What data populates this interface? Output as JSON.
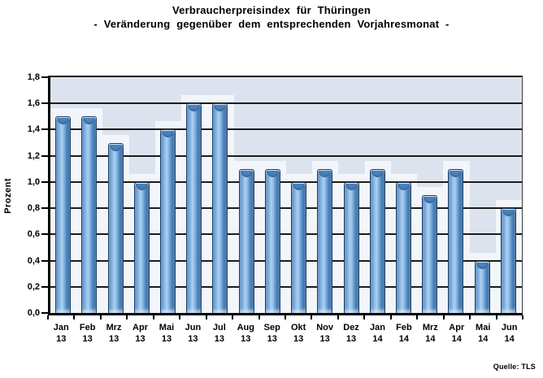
{
  "source_label": "Quelle: TLS",
  "chart_data": {
    "type": "bar",
    "title": "Verbraucherpreisindex für Thüringen",
    "subtitle": "- Veränderung gegenüber dem entsprechenden Vorjahresmonat -",
    "xlabel": "",
    "ylabel": "Prozent",
    "ylim": [
      0,
      1.8
    ],
    "ytick_step": 0.2,
    "ytick_labels": [
      "0,0",
      "0,2",
      "0,4",
      "0,6",
      "0,8",
      "1,0",
      "1,2",
      "1,4",
      "1,6",
      "1,8"
    ],
    "grid": true,
    "legend": false,
    "categories": [
      "Jan 13",
      "Feb 13",
      "Mrz 13",
      "Apr 13",
      "Mai 13",
      "Jun 13",
      "Jul 13",
      "Aug 13",
      "Sep 13",
      "Okt 13",
      "Nov 13",
      "Dez 13",
      "Jan 14",
      "Feb 14",
      "Mrz 14",
      "Apr 14",
      "Mai 14",
      "Jun 14"
    ],
    "values": [
      1.5,
      1.5,
      1.3,
      1.0,
      1.4,
      1.6,
      1.6,
      1.1,
      1.1,
      1.0,
      1.1,
      1.0,
      1.1,
      1.0,
      0.9,
      1.1,
      0.4,
      0.8
    ],
    "colors": {
      "plot_background": "#dce3ef",
      "bar_main": "#5b8fc9",
      "bar_highlight": "#aed0f0",
      "bar_border": "#1c3e63",
      "bar_glow": "#f2f6fb",
      "gridline": "#1c1c1c",
      "axis": "#000000"
    }
  }
}
